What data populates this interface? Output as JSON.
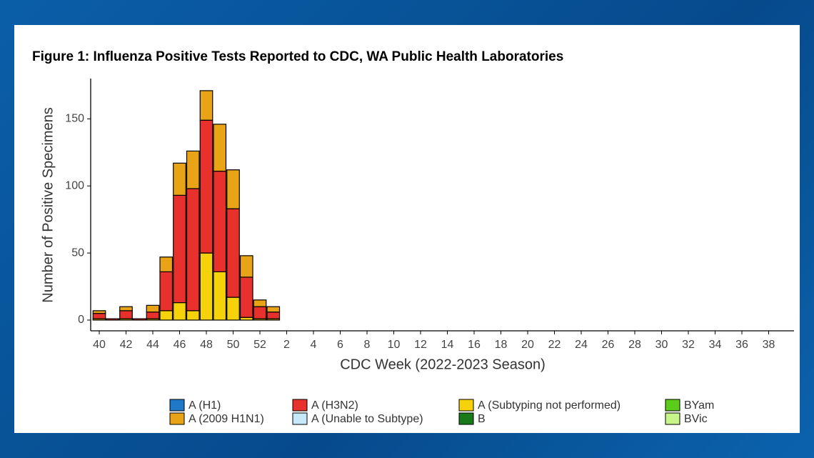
{
  "chart_data": {
    "type": "stacked_bar",
    "title": "Figure 1: Influenza Positive Tests Reported to CDC, WA Public Health Laboratories",
    "x_label": "CDC Week (2022-2023 Season)",
    "y_label": "Number of Positive Specimens",
    "categories": [
      "40",
      null,
      "42",
      null,
      "44",
      null,
      "46",
      null,
      "48",
      null,
      "50",
      null,
      "52",
      null,
      "2",
      null,
      "4",
      null,
      "6",
      null,
      "8",
      null,
      "10",
      null,
      "12",
      null,
      "14",
      null,
      "16",
      null,
      "18",
      null,
      "20",
      null,
      "22",
      null,
      "24",
      null,
      "26",
      null,
      "28",
      null,
      "30",
      null,
      "32",
      null,
      "34",
      null,
      "36",
      null,
      "38",
      null
    ],
    "ylim": [
      -8,
      180
    ],
    "yticks": [
      0,
      50,
      100,
      150
    ],
    "series": [
      {
        "name": "A (H1)",
        "color": "#1f78c8",
        "values": [
          0,
          0,
          0,
          0,
          0,
          0,
          0,
          0,
          0,
          0,
          0,
          0,
          0,
          0,
          0,
          0,
          0,
          0,
          0,
          0,
          0,
          0,
          0,
          0,
          0,
          0,
          0,
          0,
          0,
          0,
          0,
          0,
          0,
          0,
          0,
          0,
          0,
          0,
          0,
          0,
          0,
          0,
          0,
          0,
          0,
          0,
          0,
          0,
          0,
          0,
          0,
          0
        ]
      },
      {
        "name": "A (2009 H1N1)",
        "color": "#e8a317",
        "values": [
          2,
          0,
          3,
          0,
          5,
          11,
          24,
          28,
          22,
          35,
          29,
          16,
          5,
          4,
          0,
          0,
          0,
          0,
          0,
          0,
          0,
          0,
          0,
          0,
          0,
          0,
          0,
          0,
          0,
          0,
          0,
          0,
          0,
          0,
          0,
          0,
          0,
          0,
          0,
          0,
          0,
          0,
          0,
          0,
          0,
          0,
          0,
          0,
          0,
          0,
          0,
          0
        ]
      },
      {
        "name": "A (H3N2)",
        "color": "#e8302c",
        "values": [
          4,
          1,
          6,
          1,
          5,
          29,
          80,
          91,
          99,
          75,
          66,
          30,
          9,
          5,
          0,
          0,
          0,
          0,
          0,
          0,
          0,
          0,
          0,
          0,
          0,
          0,
          0,
          0,
          0,
          0,
          0,
          0,
          0,
          0,
          0,
          0,
          0,
          0,
          0,
          0,
          0,
          0,
          0,
          0,
          0,
          0,
          0,
          0,
          0,
          0,
          0,
          0
        ]
      },
      {
        "name": "A (Unable to Subtype)",
        "color": "#c6e9fa",
        "values": [
          0,
          0,
          0,
          0,
          0,
          0,
          0,
          0,
          0,
          0,
          0,
          0,
          0,
          0,
          0,
          0,
          0,
          0,
          0,
          0,
          0,
          0,
          0,
          0,
          0,
          0,
          0,
          0,
          0,
          0,
          0,
          0,
          0,
          0,
          0,
          0,
          0,
          0,
          0,
          0,
          0,
          0,
          0,
          0,
          0,
          0,
          0,
          0,
          0,
          0,
          0,
          0
        ]
      },
      {
        "name": "A (Subtyping not performed)",
        "color": "#f5d20a",
        "values": [
          1,
          0,
          1,
          0,
          1,
          7,
          13,
          7,
          50,
          36,
          17,
          2,
          1,
          1,
          0,
          0,
          0,
          0,
          0,
          0,
          0,
          0,
          0,
          0,
          0,
          0,
          0,
          0,
          0,
          0,
          0,
          0,
          0,
          0,
          0,
          0,
          0,
          0,
          0,
          0,
          0,
          0,
          0,
          0,
          0,
          0,
          0,
          0,
          0,
          0,
          0,
          0
        ]
      },
      {
        "name": "B",
        "color": "#1a7a1a",
        "values": [
          0,
          0,
          0,
          0,
          0,
          0,
          0,
          0,
          0,
          0,
          0,
          0,
          0,
          0,
          0,
          0,
          0,
          0,
          0,
          0,
          0,
          0,
          0,
          0,
          0,
          0,
          0,
          0,
          0,
          0,
          0,
          0,
          0,
          0,
          0,
          0,
          0,
          0,
          0,
          0,
          0,
          0,
          0,
          0,
          0,
          0,
          0,
          0,
          0,
          0,
          0,
          0
        ]
      },
      {
        "name": "BYam",
        "color": "#5ccc1a",
        "values": [
          0,
          0,
          0,
          0,
          0,
          0,
          0,
          0,
          0,
          0,
          0,
          0,
          0,
          0,
          0,
          0,
          0,
          0,
          0,
          0,
          0,
          0,
          0,
          0,
          0,
          0,
          0,
          0,
          0,
          0,
          0,
          0,
          0,
          0,
          0,
          0,
          0,
          0,
          0,
          0,
          0,
          0,
          0,
          0,
          0,
          0,
          0,
          0,
          0,
          0,
          0,
          0
        ]
      },
      {
        "name": "BVic",
        "color": "#c8f58a",
        "values": [
          0,
          0,
          0,
          0,
          0,
          0,
          0,
          0,
          0,
          0,
          0,
          0,
          0,
          0,
          0,
          0,
          0,
          0,
          0,
          0,
          0,
          0,
          0,
          0,
          0,
          0,
          0,
          0,
          0,
          0,
          0,
          0,
          0,
          0,
          0,
          0,
          0,
          0,
          0,
          0,
          0,
          0,
          0,
          0,
          0,
          0,
          0,
          0,
          0,
          0,
          0,
          0
        ]
      }
    ]
  }
}
